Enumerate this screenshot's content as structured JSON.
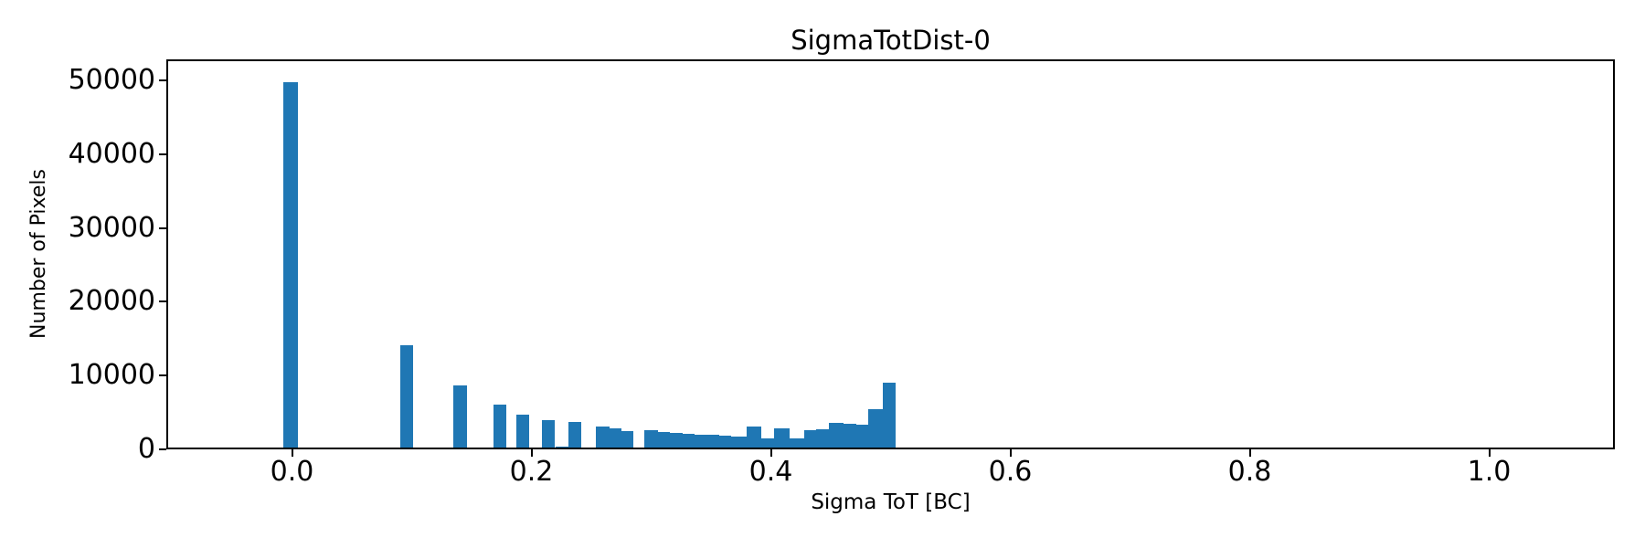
{
  "figure": {
    "background": "#ffffff"
  },
  "chart_data": {
    "type": "bar",
    "subtype": "histogram",
    "title": "SigmaTotDist-0",
    "xlabel": "Sigma ToT [BC]",
    "ylabel": "Number of Pixels",
    "bar_color": "#1f77b4",
    "axis_color": "#000000",
    "grid": false,
    "legend": false,
    "xlim": [
      -0.105,
      1.105
    ],
    "ylim": [
      0,
      52850
    ],
    "xticks": {
      "values": [
        0.0,
        0.2,
        0.4,
        0.6,
        0.8,
        1.0
      ],
      "labels": [
        "0.0",
        "0.2",
        "0.4",
        "0.6",
        "0.8",
        "1.0"
      ]
    },
    "yticks": {
      "values": [
        0,
        10000,
        20000,
        30000,
        40000,
        50000
      ],
      "labels": [
        "0",
        "10000",
        "20000",
        "30000",
        "40000",
        "50000"
      ]
    },
    "bins": [
      {
        "x0": -0.0076,
        "x1": 0.0049,
        "count": 49800
      },
      {
        "x0": 0.0905,
        "x1": 0.1012,
        "count": 14100
      },
      {
        "x0": 0.135,
        "x1": 0.1464,
        "count": 8650
      },
      {
        "x0": 0.1681,
        "x1": 0.1788,
        "count": 6100
      },
      {
        "x0": 0.1877,
        "x1": 0.1984,
        "count": 4740
      },
      {
        "x0": 0.2088,
        "x1": 0.2198,
        "count": 3960
      },
      {
        "x0": 0.2198,
        "x1": 0.2305,
        "count": 330
      },
      {
        "x0": 0.2305,
        "x1": 0.2412,
        "count": 3750
      },
      {
        "x0": 0.2534,
        "x1": 0.2649,
        "count": 3100
      },
      {
        "x0": 0.2649,
        "x1": 0.275,
        "count": 2800
      },
      {
        "x0": 0.275,
        "x1": 0.2852,
        "count": 2480
      },
      {
        "x0": 0.2946,
        "x1": 0.3056,
        "count": 2600
      },
      {
        "x0": 0.3056,
        "x1": 0.3157,
        "count": 2330
      },
      {
        "x0": 0.3157,
        "x1": 0.326,
        "count": 2230
      },
      {
        "x0": 0.326,
        "x1": 0.3361,
        "count": 2110
      },
      {
        "x0": 0.3361,
        "x1": 0.3463,
        "count": 2020
      },
      {
        "x0": 0.3463,
        "x1": 0.3565,
        "count": 1950
      },
      {
        "x0": 0.3565,
        "x1": 0.3667,
        "count": 1870
      },
      {
        "x0": 0.3667,
        "x1": 0.3797,
        "count": 1790
      },
      {
        "x0": 0.3797,
        "x1": 0.3919,
        "count": 3150
      },
      {
        "x0": 0.3919,
        "x1": 0.4026,
        "count": 1530
      },
      {
        "x0": 0.4026,
        "x1": 0.4156,
        "count": 2820
      },
      {
        "x0": 0.4156,
        "x1": 0.4278,
        "count": 1450
      },
      {
        "x0": 0.4278,
        "x1": 0.4378,
        "count": 2640
      },
      {
        "x0": 0.4378,
        "x1": 0.4485,
        "count": 2770
      },
      {
        "x0": 0.4485,
        "x1": 0.4607,
        "count": 3630
      },
      {
        "x0": 0.4607,
        "x1": 0.4714,
        "count": 3430
      },
      {
        "x0": 0.4714,
        "x1": 0.4813,
        "count": 3300
      },
      {
        "x0": 0.4813,
        "x1": 0.4935,
        "count": 5400
      },
      {
        "x0": 0.4935,
        "x1": 0.5038,
        "count": 9040
      }
    ]
  }
}
